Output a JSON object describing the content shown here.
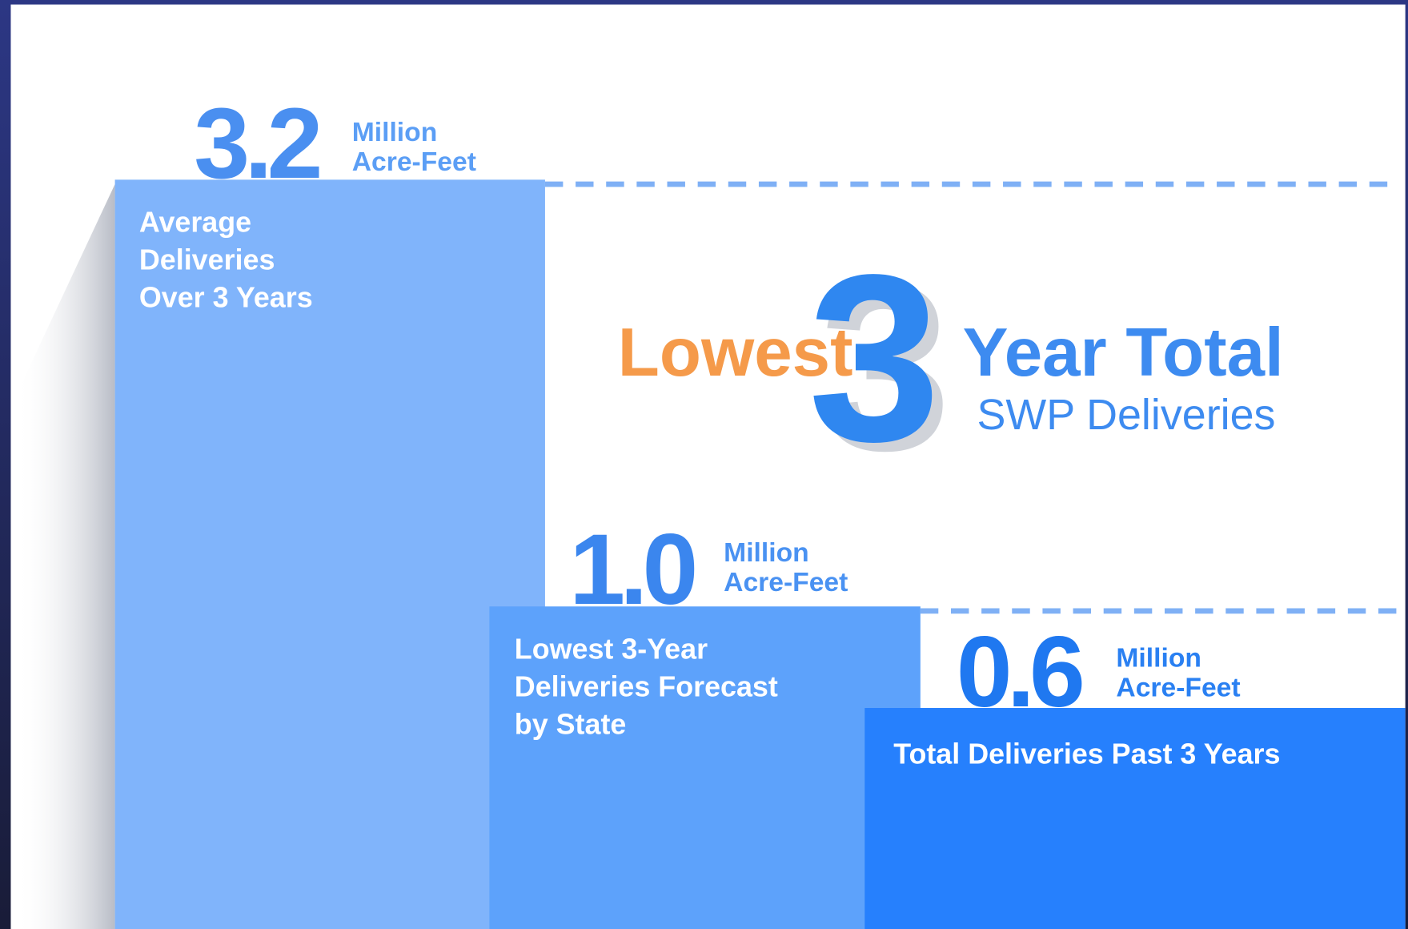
{
  "headline": {
    "lead": "Lowest",
    "number": "3",
    "rest": "Year Total",
    "sub": "SWP Deliveries"
  },
  "blocks": [
    {
      "value": "3.2",
      "unit": [
        "Million",
        "Acre-Feet"
      ],
      "label": [
        "Average",
        "Deliveries",
        "Over 3 Years"
      ]
    },
    {
      "value": "1.0",
      "unit": [
        "Million",
        "Acre-Feet"
      ],
      "label": [
        "Lowest 3-Year",
        "Deliveries Forecast",
        "by State"
      ]
    },
    {
      "value": "0.6",
      "unit": [
        "Million",
        "Acre-Feet"
      ],
      "label": [
        "Total Deliveries Past 3 Years"
      ]
    }
  ]
}
